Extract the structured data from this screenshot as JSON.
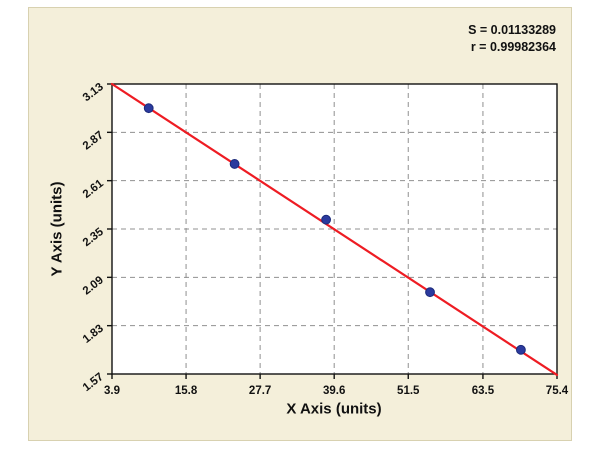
{
  "stats": {
    "s": "S = 0.01133289",
    "r": "r = 0.99982364"
  },
  "chart_data": {
    "type": "scatter",
    "title": "",
    "xlabel": "X Axis (units)",
    "ylabel": "Y Axis (units)",
    "xlim": [
      3.9,
      75.4
    ],
    "ylim": [
      1.57,
      3.13
    ],
    "x_ticks": [
      "3.9",
      "15.8",
      "27.7",
      "39.6",
      "51.5",
      "63.5",
      "75.4"
    ],
    "y_ticks": [
      "1.57",
      "1.83",
      "2.09",
      "2.35",
      "2.61",
      "2.87",
      "3.13"
    ],
    "grid": "dashed",
    "legend": "none",
    "points": {
      "x": [
        9.8,
        23.6,
        38.3,
        55.0,
        69.6
      ],
      "y": [
        3.0,
        2.7,
        2.4,
        2.01,
        1.7
      ]
    },
    "fit_line": {
      "x": [
        3.9,
        75.4
      ],
      "y": [
        3.13,
        1.565
      ]
    },
    "annotations": [
      "S = 0.01133289",
      "r = 0.99982364"
    ],
    "colors": {
      "point": "#2b3a9e",
      "point_edge": "#1b2a7a",
      "line": "#ee1c23",
      "grid": "#909090",
      "axis": "#111111",
      "panel": "#f4efda",
      "plot_bg": "#ffffff"
    }
  }
}
